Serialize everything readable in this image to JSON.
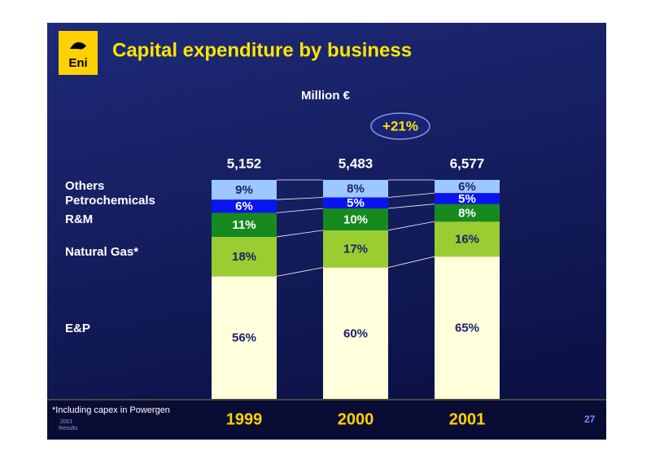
{
  "title": "Capital expenditure by business",
  "logo_text": "Eni",
  "footnote": "*Including capex in Powergen",
  "footer_lines": [
    "2001",
    "Results"
  ],
  "page_number": "27",
  "chart_data": {
    "type": "bar",
    "stacked": true,
    "unit": "Million €",
    "growth_label": "+21%",
    "categories": [
      "1999",
      "2000",
      "2001"
    ],
    "totals": [
      {
        "value": 5152,
        "label": "5,152"
      },
      {
        "value": 5483,
        "label": "5,483"
      },
      {
        "value": 6577,
        "label": "6,577"
      }
    ],
    "ylim": [
      0,
      100
    ],
    "series": [
      {
        "name": "E&P",
        "color": "#ffffdc",
        "label_color": "#1b1f6b",
        "values": [
          56,
          60,
          65
        ],
        "value_labels": [
          "56%",
          "60%",
          "65%"
        ]
      },
      {
        "name": "Natural Gas*",
        "color": "#9acd32",
        "label_color": "#1b1f6b",
        "values": [
          18,
          17,
          16
        ],
        "value_labels": [
          "18%",
          "17%",
          "16%"
        ]
      },
      {
        "name": "R&M",
        "color": "#168a1e",
        "label_color": "#ffffff",
        "values": [
          11,
          10,
          8
        ],
        "value_labels": [
          "11%",
          "10%",
          "8%"
        ]
      },
      {
        "name": "Petrochemicals",
        "color": "#0a14f0",
        "label_color": "#ffffff",
        "values": [
          6,
          5,
          5
        ],
        "value_labels": [
          "6%",
          "5%",
          "5%"
        ]
      },
      {
        "name": "Others",
        "color": "#9cc8ff",
        "label_color": "#1b1f6b",
        "values": [
          9,
          8,
          6
        ],
        "value_labels": [
          "9%",
          "8%",
          "6%"
        ]
      }
    ]
  }
}
